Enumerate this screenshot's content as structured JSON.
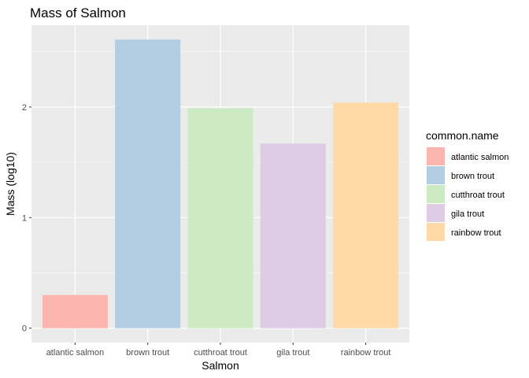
{
  "chart_data": {
    "type": "bar",
    "title": "Mass of Salmon",
    "xlabel": "Salmon",
    "ylabel": "Mass (log10)",
    "categories": [
      "atlantic salmon",
      "brown trout",
      "cutthroat trout",
      "gila trout",
      "rainbow trout"
    ],
    "values": [
      0.3,
      2.61,
      1.99,
      1.67,
      2.04
    ],
    "colors": [
      "#FBB4AE",
      "#B3CDE3",
      "#CCEBC5",
      "#DECBE4",
      "#FED9A6"
    ],
    "y_ticks": [
      0,
      1,
      2
    ],
    "ylim": [
      -0.13,
      2.74
    ],
    "grid": true,
    "legend": {
      "title": "common.name",
      "position": "right",
      "entries": [
        "atlantic salmon",
        "brown trout",
        "cutthroat trout",
        "gila trout",
        "rainbow trout"
      ]
    },
    "panel_background": "#EBEBEB",
    "grid_color": "#FFFFFF"
  }
}
